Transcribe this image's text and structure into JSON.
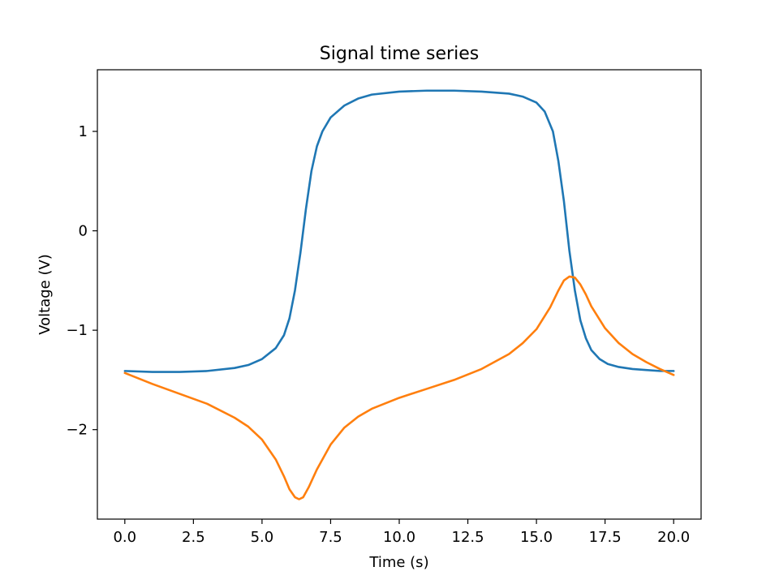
{
  "chart_data": {
    "type": "line",
    "title": "Signal time series",
    "xlabel": "Time (s)",
    "ylabel": "Voltage (V)",
    "xlim": [
      -1.0,
      21.0
    ],
    "ylim": [
      -2.9,
      1.62
    ],
    "xticks": [
      0.0,
      2.5,
      5.0,
      7.5,
      10.0,
      12.5,
      15.0,
      17.5,
      20.0
    ],
    "xtick_labels": [
      "0.0",
      "2.5",
      "5.0",
      "7.5",
      "10.0",
      "12.5",
      "15.0",
      "17.5",
      "20.0"
    ],
    "yticks": [
      1,
      0,
      -1,
      -2
    ],
    "ytick_labels": [
      "1",
      "0",
      "−1",
      "−2"
    ],
    "grid": false,
    "series": [
      {
        "color": "#1f77b4",
        "x": [
          0,
          1,
          1.5,
          2,
          3,
          4,
          4.5,
          5,
          5.5,
          5.8,
          6,
          6.2,
          6.4,
          6.6,
          6.8,
          7,
          7.2,
          7.5,
          8,
          8.5,
          9,
          10,
          11,
          12,
          13,
          14,
          14.5,
          15,
          15.3,
          15.6,
          15.8,
          16,
          16.2,
          16.4,
          16.6,
          16.8,
          17,
          17.3,
          17.6,
          18,
          18.5,
          19,
          19.5,
          20
        ],
        "y": [
          -1.41,
          -1.42,
          -1.42,
          -1.42,
          -1.41,
          -1.38,
          -1.35,
          -1.29,
          -1.18,
          -1.05,
          -0.88,
          -0.6,
          -0.22,
          0.22,
          0.6,
          0.85,
          1.0,
          1.14,
          1.26,
          1.33,
          1.37,
          1.4,
          1.41,
          1.41,
          1.4,
          1.38,
          1.35,
          1.29,
          1.2,
          1.0,
          0.7,
          0.3,
          -0.2,
          -0.6,
          -0.9,
          -1.08,
          -1.2,
          -1.29,
          -1.34,
          -1.37,
          -1.39,
          -1.4,
          -1.41,
          -1.41
        ]
      },
      {
        "color": "#ff7f0e",
        "x": [
          0,
          1,
          2,
          3,
          4,
          4.5,
          5,
          5.5,
          5.8,
          6,
          6.2,
          6.35,
          6.5,
          6.7,
          7,
          7.5,
          8,
          8.5,
          9,
          10,
          11,
          12,
          13,
          14,
          14.5,
          15,
          15.5,
          15.8,
          16,
          16.2,
          16.4,
          16.6,
          16.8,
          17,
          17.5,
          18,
          18.5,
          19,
          19.5,
          20
        ],
        "y": [
          -1.43,
          -1.54,
          -1.64,
          -1.74,
          -1.88,
          -1.97,
          -2.1,
          -2.3,
          -2.47,
          -2.6,
          -2.68,
          -2.7,
          -2.68,
          -2.58,
          -2.4,
          -2.15,
          -1.98,
          -1.87,
          -1.79,
          -1.68,
          -1.59,
          -1.5,
          -1.39,
          -1.24,
          -1.13,
          -0.99,
          -0.77,
          -0.6,
          -0.5,
          -0.46,
          -0.47,
          -0.54,
          -0.64,
          -0.76,
          -0.98,
          -1.13,
          -1.24,
          -1.32,
          -1.39,
          -1.45
        ]
      }
    ]
  }
}
